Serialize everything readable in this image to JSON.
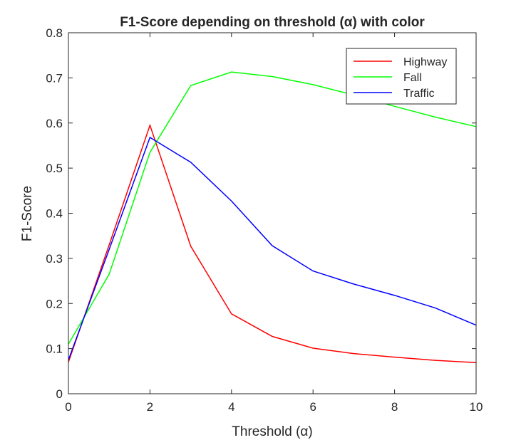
{
  "chart_data": {
    "type": "line",
    "title": "F1-Score depending on threshold (α) with color",
    "xlabel": "Threshold (α)",
    "ylabel": "F1-Score",
    "xlim": [
      0,
      10
    ],
    "ylim": [
      0,
      0.8
    ],
    "xticks": [
      0,
      2,
      4,
      6,
      8,
      10
    ],
    "yticks": [
      0,
      0.1,
      0.2,
      0.3,
      0.4,
      0.5,
      0.6,
      0.7,
      0.8
    ],
    "xtick_labels": [
      "0",
      "2",
      "4",
      "6",
      "8",
      "10"
    ],
    "ytick_labels": [
      "0",
      "0.1",
      "0.2",
      "0.3",
      "0.4",
      "0.5",
      "0.6",
      "0.7",
      "0.8"
    ],
    "grid": false,
    "legend_position": "top-right",
    "x": [
      0,
      1,
      2,
      3,
      4,
      5,
      6,
      7,
      8,
      9,
      10
    ],
    "series": [
      {
        "name": "Highway",
        "color": "#ff0000",
        "values": [
          0.07,
          0.33,
          0.595,
          0.327,
          0.177,
          0.127,
          0.101,
          0.089,
          0.081,
          0.074,
          0.069
        ]
      },
      {
        "name": "Fall",
        "color": "#00ff00",
        "values": [
          0.11,
          0.265,
          0.535,
          0.683,
          0.713,
          0.703,
          0.685,
          0.662,
          0.637,
          0.613,
          0.592
        ]
      },
      {
        "name": "Traffic",
        "color": "#0000ff",
        "values": [
          0.075,
          0.32,
          0.568,
          0.513,
          0.427,
          0.328,
          0.272,
          0.243,
          0.218,
          0.19,
          0.152
        ]
      }
    ]
  }
}
